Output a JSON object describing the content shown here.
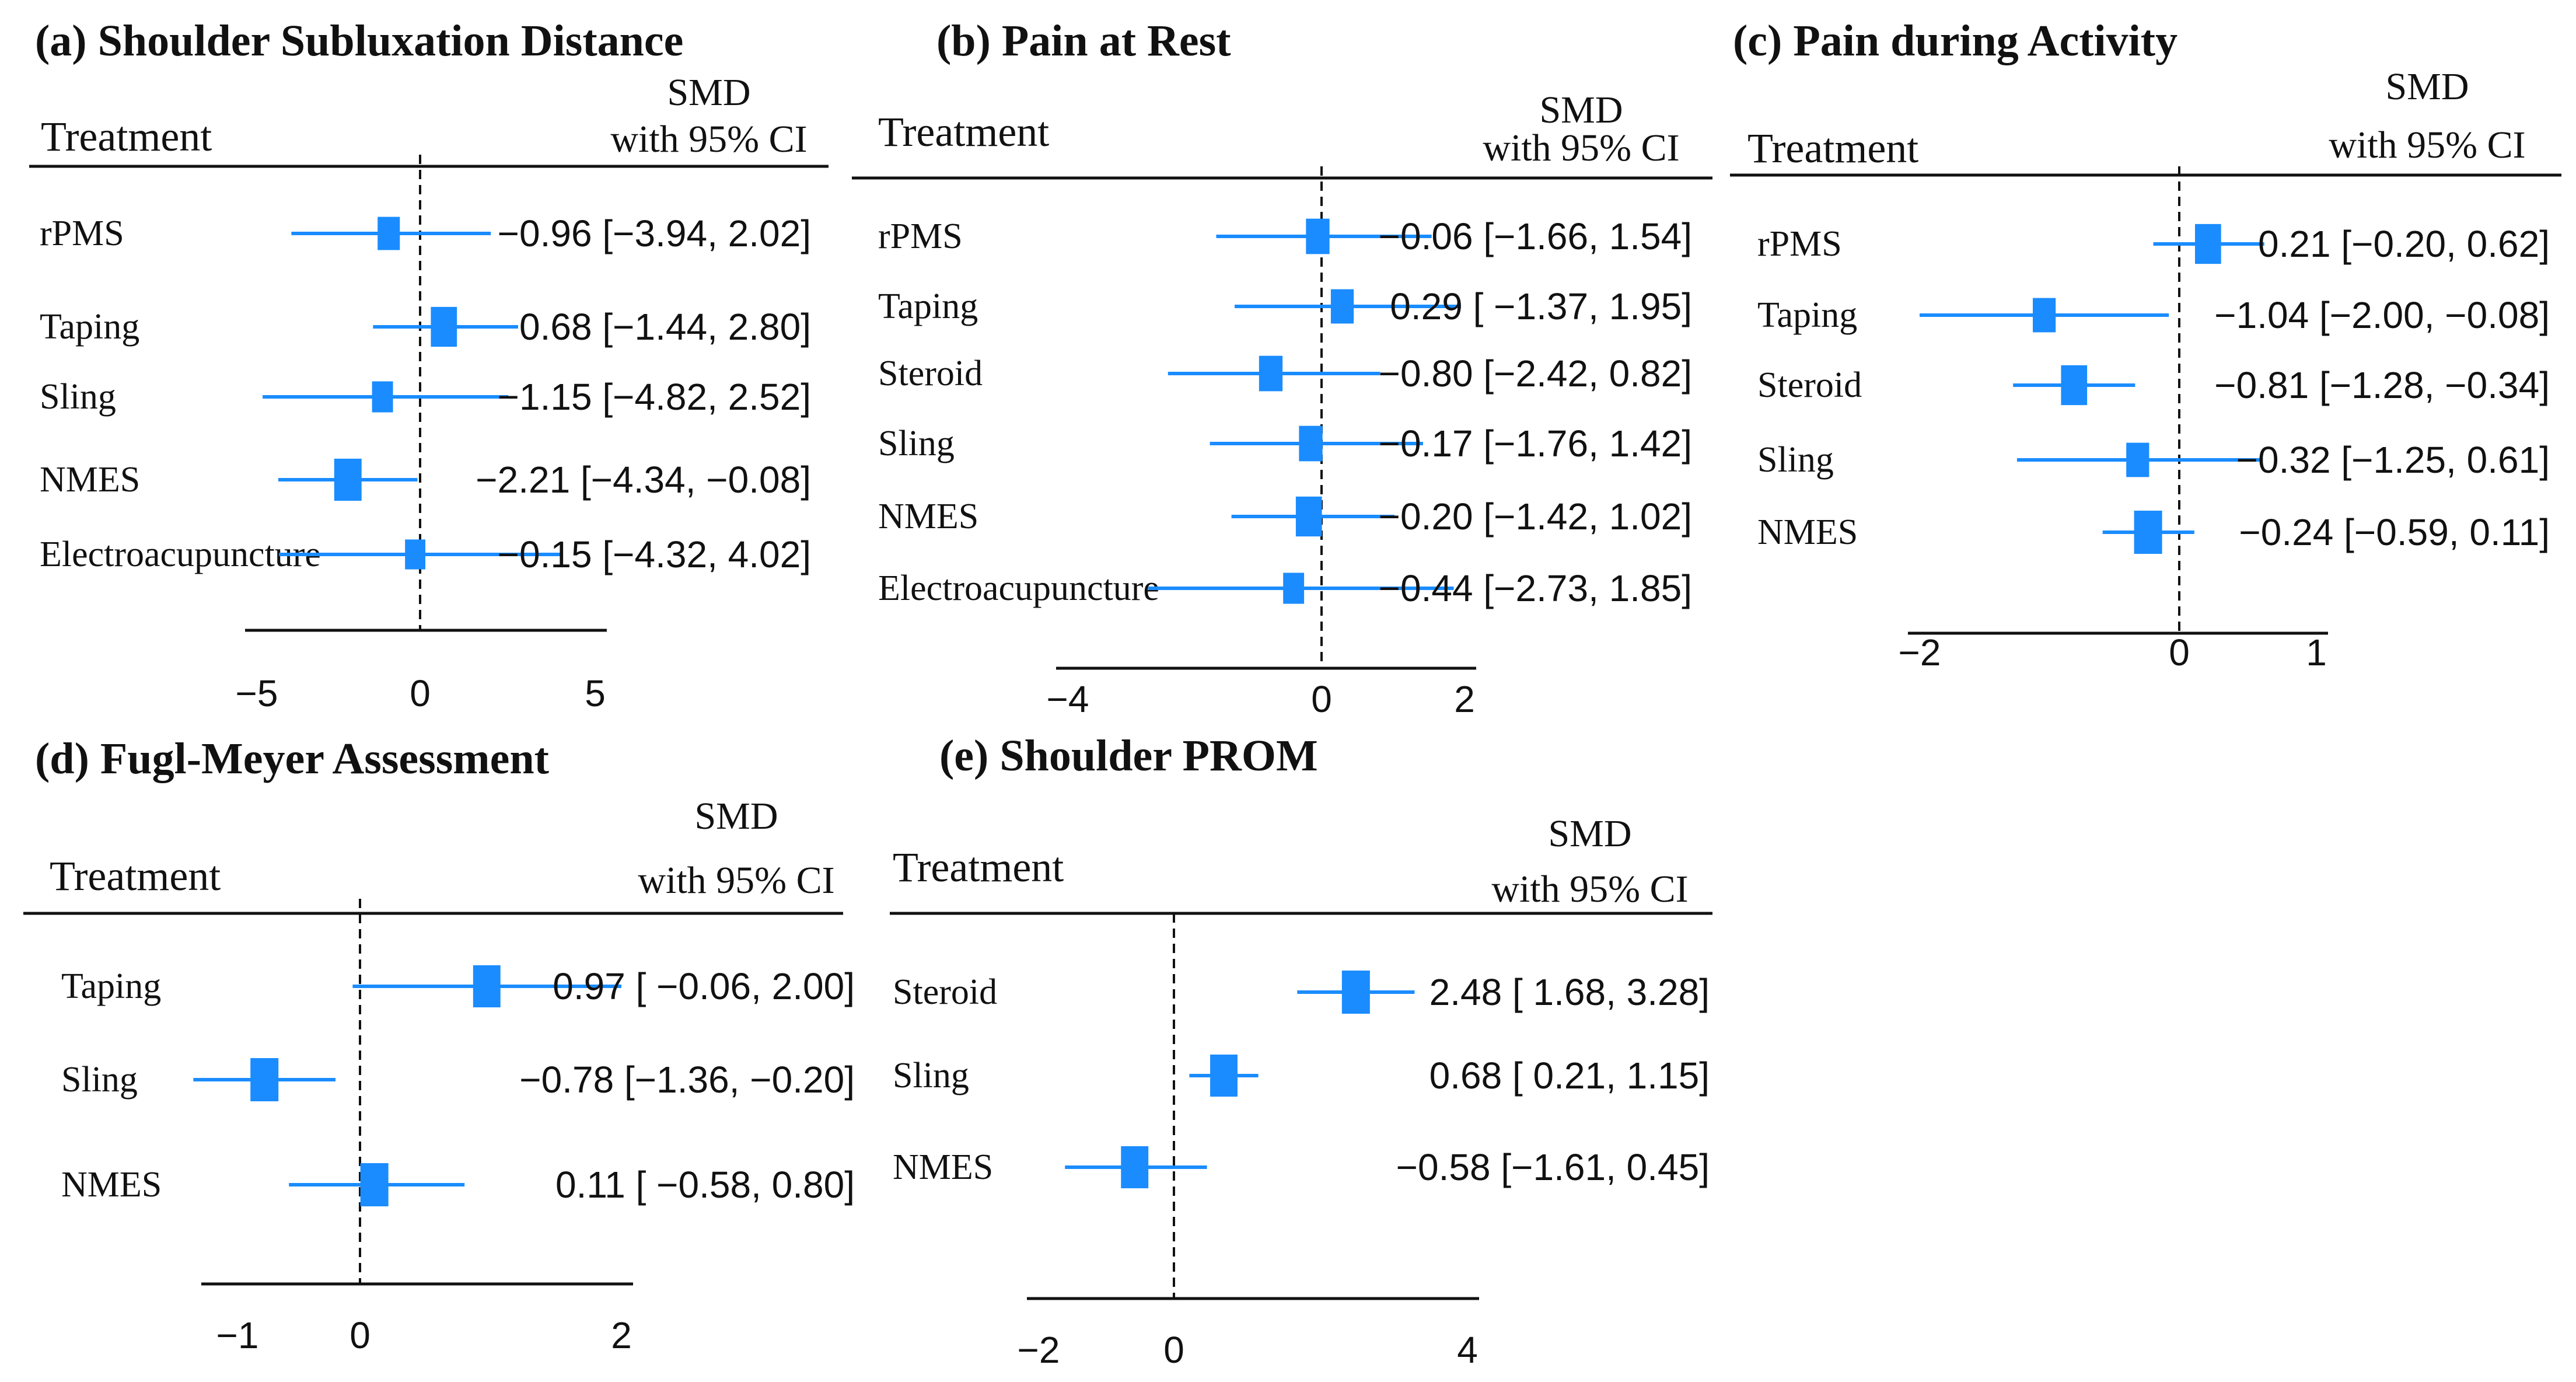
{
  "colors": {
    "marker": "#1a8cff",
    "text": "#111111"
  },
  "chart_data": [
    {
      "type": "forest",
      "panel": "a",
      "title": "(a) Shoulder Subluxation Distance",
      "treatment_header": "Treatment",
      "smd_header": "SMD",
      "ci_header": "with 95% CI",
      "xlim": [
        -5,
        5
      ],
      "ticks": [
        -5,
        0,
        5
      ],
      "tick_labels": [
        "-5",
        "0",
        "5"
      ],
      "rows": [
        {
          "label": "rPMS",
          "smd": -0.96,
          "lo": -3.94,
          "hi": 2.02,
          "ci_text": "-0.96 [-3.94,  2.02]",
          "weight": 0.55
        },
        {
          "label": "Taping",
          "smd": 0.68,
          "lo": -1.44,
          "hi": 2.8,
          "ci_text": "0.68 [-1.44,  2.80]",
          "weight": 0.85
        },
        {
          "label": "Sling",
          "smd": -1.15,
          "lo": -4.82,
          "hi": 2.52,
          "ci_text": "-1.15 [-4.82,  2.52]",
          "weight": 0.45
        },
        {
          "label": "NMES",
          "smd": -2.21,
          "lo": -4.34,
          "hi": -0.08,
          "ci_text": "-2.21 [-4.34, -0.08]",
          "weight": 0.95
        },
        {
          "label": "Electroacupuncture",
          "smd": -0.15,
          "lo": -4.32,
          "hi": 4.02,
          "ci_text": "-0.15 [-4.32,  4.02]",
          "weight": 0.4
        }
      ]
    },
    {
      "type": "forest",
      "panel": "b",
      "title": "(b) Pain at Rest",
      "treatment_header": "Treatment",
      "smd_header": "SMD",
      "ci_header": "with 95% CI",
      "xlim": [
        -4,
        2
      ],
      "ticks": [
        -4,
        0,
        2
      ],
      "tick_labels": [
        "-4",
        "0",
        "2"
      ],
      "rows": [
        {
          "label": "rPMS",
          "smd": -0.06,
          "lo": -1.66,
          "hi": 1.54,
          "ci_text": "-0.06 [-1.66, 1.54]",
          "weight": 0.65
        },
        {
          "label": "Taping",
          "smd": 0.29,
          "lo": -1.37,
          "hi": 1.95,
          "ci_text": "0.29 [ -1.37, 1.95]",
          "weight": 0.6
        },
        {
          "label": "Steroid",
          "smd": -0.8,
          "lo": -2.42,
          "hi": 0.82,
          "ci_text": "-0.80 [-2.42, 0.82]",
          "weight": 0.65
        },
        {
          "label": "Sling",
          "smd": -0.17,
          "lo": -1.76,
          "hi": 1.42,
          "ci_text": "-0.17 [-1.76, 1.42]",
          "weight": 0.65
        },
        {
          "label": "NMES",
          "smd": -0.2,
          "lo": -1.42,
          "hi": 1.02,
          "ci_text": "-0.20 [-1.42, 1.02]",
          "weight": 0.85
        },
        {
          "label": "Electroacupuncture",
          "smd": -0.44,
          "lo": -2.73,
          "hi": 1.85,
          "ci_text": "-0.44 [-2.73, 1.85]",
          "weight": 0.45
        }
      ]
    },
    {
      "type": "forest",
      "panel": "c",
      "title": "(c) Pain during Activity",
      "treatment_header": "Treatment",
      "smd_header": "SMD",
      "ci_header": "with 95% CI",
      "xlim": [
        -2,
        1
      ],
      "ticks": [
        -2,
        0,
        1
      ],
      "tick_labels": [
        "-2",
        "0",
        "1"
      ],
      "rows": [
        {
          "label": "rPMS",
          "smd": 0.21,
          "lo": -0.2,
          "hi": 0.62,
          "ci_text": "0.21 [-0.20,  0.62]",
          "weight": 0.85
        },
        {
          "label": "Taping",
          "smd": -1.04,
          "lo": -2.0,
          "hi": -0.08,
          "ci_text": "-1.04 [-2.00, -0.08]",
          "weight": 0.6
        },
        {
          "label": "Steroid",
          "smd": -0.81,
          "lo": -1.28,
          "hi": -0.34,
          "ci_text": "-0.81 [-1.28, -0.34]",
          "weight": 0.85
        },
        {
          "label": "Sling",
          "smd": -0.32,
          "lo": -1.25,
          "hi": 0.61,
          "ci_text": "-0.32 [-1.25,  0.61]",
          "weight": 0.6
        },
        {
          "label": "NMES",
          "smd": -0.24,
          "lo": -0.59,
          "hi": 0.11,
          "ci_text": "-0.24 [-0.59,  0.11]",
          "weight": 1.0
        }
      ]
    },
    {
      "type": "forest",
      "panel": "d",
      "title": "(d) Fugl-Meyer Assessment",
      "treatment_header": "Treatment",
      "smd_header": "SMD",
      "ci_header": "with 95% CI",
      "xlim": [
        -1.2,
        2
      ],
      "ticks": [
        -1,
        0,
        2
      ],
      "tick_labels": [
        "-1",
        "0",
        "2"
      ],
      "rows": [
        {
          "label": "Taping",
          "smd": 0.97,
          "lo": -0.06,
          "hi": 2.0,
          "ci_text": "0.97 [ -0.06,  2.00]",
          "weight": 0.95
        },
        {
          "label": "Sling",
          "smd": -0.78,
          "lo": -1.36,
          "hi": -0.2,
          "ci_text": "-0.78 [-1.36, -0.20]",
          "weight": 1.0
        },
        {
          "label": "NMES",
          "smd": 0.11,
          "lo": -0.58,
          "hi": 0.8,
          "ci_text": "0.11 [ -0.58,  0.80]",
          "weight": 1.0
        }
      ]
    },
    {
      "type": "forest",
      "panel": "e",
      "title": "(e) Shoulder PROM",
      "treatment_header": "Treatment",
      "smd_header": "SMD",
      "ci_header": "with 95% CI",
      "xlim": [
        -2,
        4
      ],
      "ticks": [
        -2,
        0,
        4
      ],
      "tick_labels": [
        "-2",
        "0",
        "4"
      ],
      "rows": [
        {
          "label": "Steroid",
          "smd": 2.48,
          "lo": 1.68,
          "hi": 3.28,
          "ci_text": "2.48 [  1.68,  3.28]",
          "weight": 1.0
        },
        {
          "label": "Sling",
          "smd": 0.68,
          "lo": 0.21,
          "hi": 1.15,
          "ci_text": "0.68 [  0.21,  1.15]",
          "weight": 0.95
        },
        {
          "label": "NMES",
          "smd": -0.58,
          "lo": -1.61,
          "hi": 0.45,
          "ci_text": "-0.58 [-1.61, 0.45]",
          "weight": 0.95
        }
      ]
    }
  ]
}
